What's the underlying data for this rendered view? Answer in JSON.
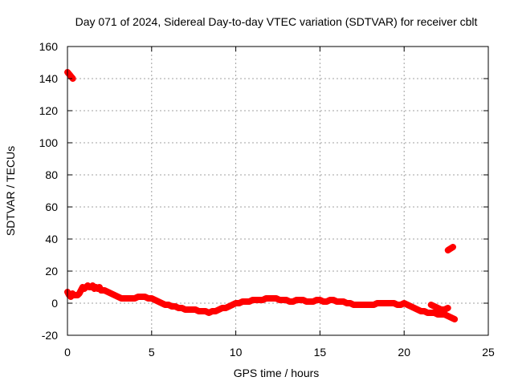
{
  "chart_data": {
    "type": "scatter",
    "title": "Day 071 of 2024, Sidereal Day-to-day VTEC variation (SDTVAR) for receiver cblt",
    "xlabel": "GPS time / hours",
    "ylabel": "SDTVAR / TECUs",
    "xlim": [
      0,
      25
    ],
    "ylim": [
      -20,
      160
    ],
    "xticks": [
      0,
      5,
      10,
      15,
      20,
      25
    ],
    "yticks": [
      -20,
      0,
      20,
      40,
      60,
      80,
      100,
      120,
      140,
      160
    ],
    "grid": true,
    "series_color": "#ff0000",
    "grid_color": "#a0a0a0",
    "series": [
      {
        "name": "SDTVAR",
        "segments": [
          {
            "x": [
              0.0,
              0.08,
              0.16,
              0.24,
              0.32
            ],
            "y": [
              144,
              143,
              142,
              141,
              140
            ]
          },
          {
            "x": [
              0.0,
              0.1,
              0.2,
              0.3,
              0.4,
              0.5,
              0.6,
              0.7,
              0.8,
              0.9,
              1.0,
              1.1,
              1.2,
              1.3,
              1.4,
              1.5,
              1.6,
              1.7,
              1.8,
              1.9,
              2.0,
              2.2,
              2.4,
              2.6,
              2.8,
              3.0,
              3.2,
              3.4,
              3.6,
              3.8,
              4.0,
              4.2,
              4.4,
              4.6,
              4.8,
              5.0,
              5.2,
              5.4,
              5.6,
              5.8,
              6.0,
              6.2,
              6.4,
              6.6,
              6.8,
              7.0,
              7.2,
              7.4,
              7.6,
              7.8,
              8.0,
              8.2,
              8.4,
              8.6,
              8.8,
              9.0,
              9.2,
              9.4,
              9.6,
              9.8,
              10.0,
              10.2,
              10.4,
              10.6,
              10.8,
              11.0,
              11.2,
              11.4,
              11.6,
              11.8,
              12.0,
              12.2,
              12.4,
              12.6,
              12.8,
              13.0,
              13.2,
              13.4,
              13.6,
              13.8,
              14.0,
              14.2,
              14.4,
              14.6,
              14.8,
              15.0,
              15.2,
              15.4,
              15.6,
              15.8,
              16.0,
              16.2,
              16.4,
              16.6,
              16.8,
              17.0,
              17.2,
              17.4,
              17.6,
              17.8,
              18.0,
              18.2,
              18.4,
              18.6,
              18.8,
              19.0,
              19.2,
              19.4,
              19.6,
              19.8,
              20.0,
              20.2,
              20.4,
              20.6,
              20.8,
              21.0,
              21.2,
              21.4,
              21.6,
              21.8,
              22.0,
              22.2,
              22.4,
              22.6,
              22.8,
              23.0
            ],
            "y": [
              7,
              5,
              4,
              6,
              5,
              5,
              5,
              6,
              8,
              10,
              9,
              10,
              11,
              10,
              10,
              11,
              9,
              10,
              9,
              10,
              8,
              8,
              7,
              6,
              5,
              4,
              3,
              3,
              3,
              3,
              3,
              4,
              4,
              4,
              3,
              3,
              2,
              1,
              0,
              -1,
              -1,
              -2,
              -2,
              -3,
              -3,
              -4,
              -4,
              -4,
              -4,
              -5,
              -5,
              -5,
              -6,
              -5,
              -5,
              -4,
              -3,
              -3,
              -2,
              -1,
              0,
              0,
              1,
              1,
              1,
              2,
              2,
              2,
              2,
              3,
              3,
              3,
              3,
              2,
              2,
              2,
              1,
              1,
              2,
              2,
              2,
              1,
              1,
              1,
              2,
              2,
              1,
              1,
              2,
              2,
              1,
              1,
              1,
              0,
              0,
              -1,
              -1,
              -1,
              -1,
              -1,
              -1,
              -1,
              0,
              0,
              0,
              0,
              0,
              0,
              -1,
              -1,
              0,
              -1,
              -2,
              -3,
              -4,
              -5,
              -5,
              -6,
              -6,
              -6,
              -7,
              -7,
              -7,
              -8,
              -9,
              -10
            ]
          },
          {
            "x": [
              21.6,
              21.8,
              22.0,
              22.2,
              22.4,
              22.6
            ],
            "y": [
              -1,
              -2,
              -3,
              -4,
              -4,
              -3
            ]
          },
          {
            "x": [
              22.6,
              22.75,
              22.9
            ],
            "y": [
              33,
              34,
              35
            ]
          }
        ]
      }
    ]
  }
}
